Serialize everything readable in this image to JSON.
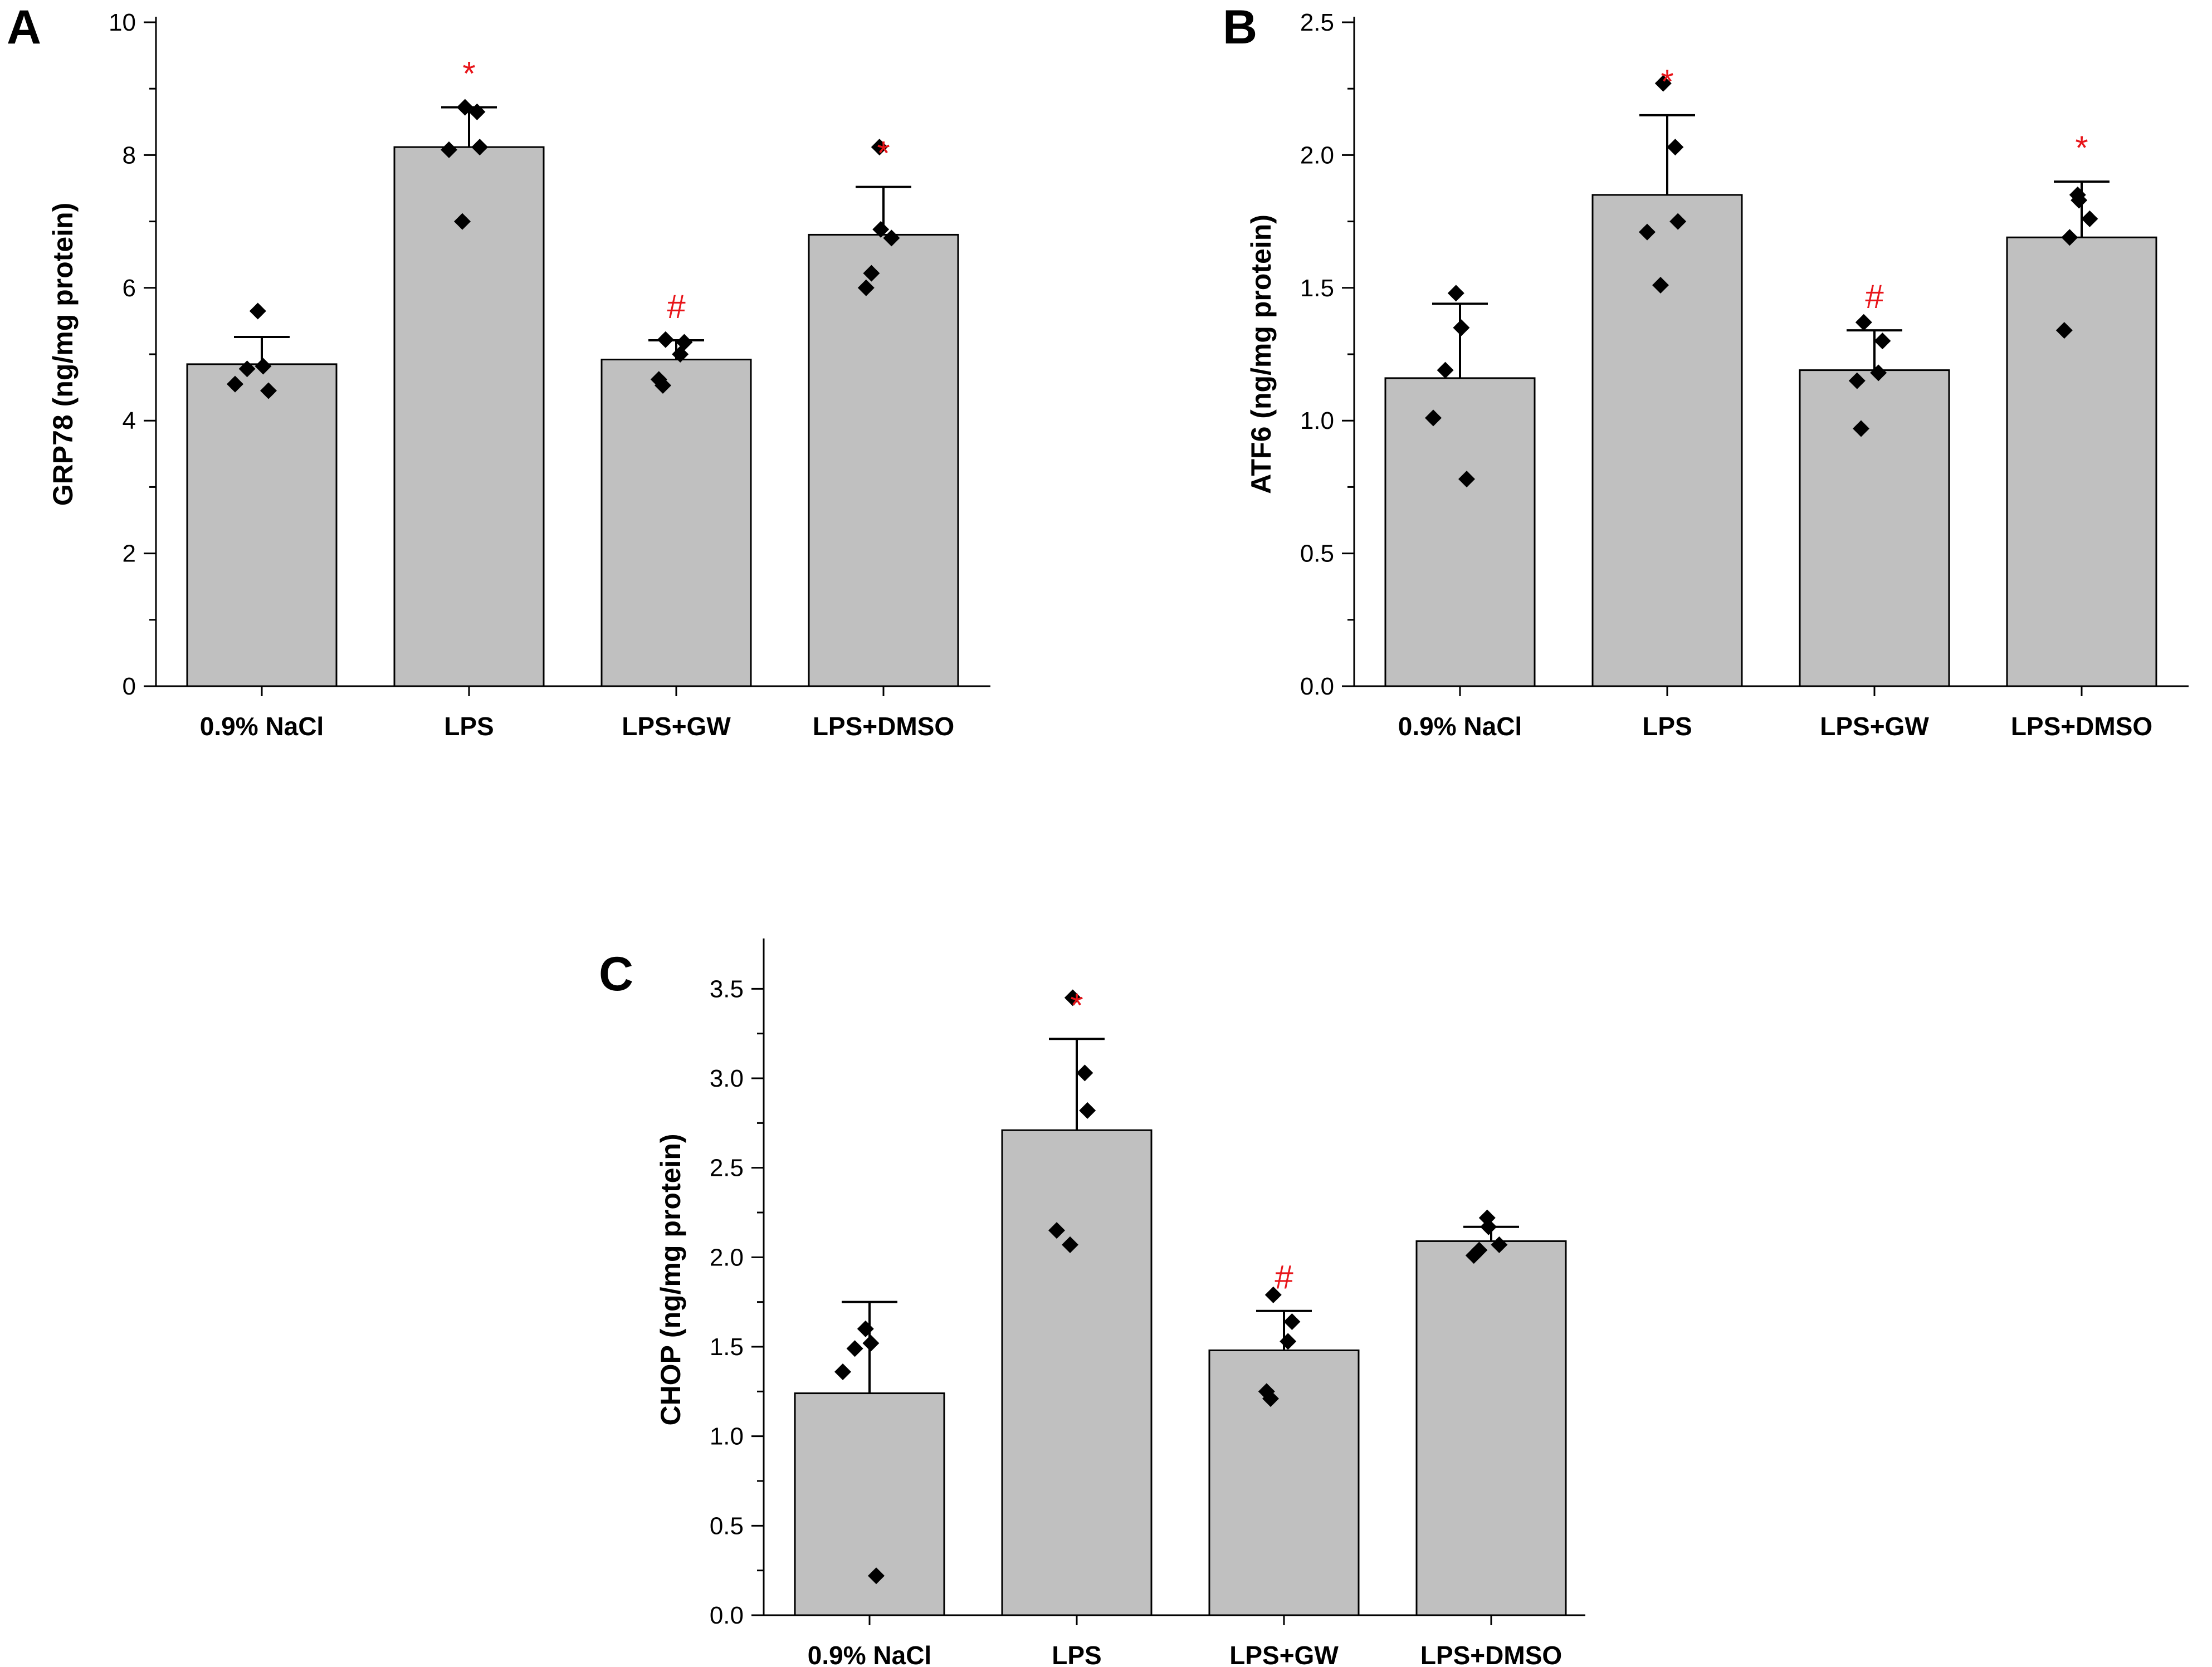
{
  "figure": {
    "background": "#ffffff",
    "bar_color": "#c0c0c0",
    "point_color": "#000000",
    "significance_color": "#e8151a"
  },
  "chart_data": [
    {
      "panel": "A",
      "type": "bar",
      "categories": [
        "0.9% NaCl",
        "LPS",
        "LPS+GW",
        "LPS+DMSO"
      ],
      "values": [
        4.85,
        8.12,
        4.92,
        6.8
      ],
      "error": [
        0.41,
        0.6,
        0.29,
        0.72
      ],
      "points": [
        [
          5.65,
          4.82,
          4.78,
          4.55,
          4.45
        ],
        [
          8.72,
          8.65,
          8.12,
          8.08,
          7.0
        ],
        [
          5.22,
          5.18,
          5.0,
          4.62,
          4.53
        ],
        [
          8.12,
          6.88,
          6.75,
          6.22,
          6.0
        ]
      ],
      "significance": [
        "",
        "*",
        "#",
        "*"
      ],
      "title": "",
      "xlabel": "",
      "ylabel": "GRP78 (ng/mg protein)",
      "ylim": [
        0,
        10
      ],
      "yticks": [
        0,
        2,
        4,
        6,
        8,
        10
      ],
      "ytick_labels": [
        "0",
        "2",
        "4",
        "6",
        "8",
        "10"
      ]
    },
    {
      "panel": "B",
      "type": "bar",
      "categories": [
        "0.9% NaCl",
        "LPS",
        "LPS+GW",
        "LPS+DMSO"
      ],
      "values": [
        1.16,
        1.85,
        1.19,
        1.69
      ],
      "error": [
        0.28,
        0.3,
        0.15,
        0.21
      ],
      "points": [
        [
          1.48,
          1.35,
          1.19,
          1.01,
          0.78
        ],
        [
          2.27,
          2.03,
          1.75,
          1.71,
          1.51
        ],
        [
          1.37,
          1.3,
          1.18,
          1.15,
          0.97
        ],
        [
          1.85,
          1.83,
          1.76,
          1.69,
          1.34
        ]
      ],
      "significance": [
        "",
        "*",
        "#",
        "*"
      ],
      "title": "",
      "xlabel": "",
      "ylabel": "ATF6 (ng/mg protein)",
      "ylim": [
        0,
        2.5
      ],
      "yticks": [
        0,
        0.5,
        1.0,
        1.5,
        2.0,
        2.5
      ],
      "ytick_labels": [
        "0.0",
        "0.5",
        "1.0",
        "1.5",
        "2.0",
        "2.5"
      ]
    },
    {
      "panel": "C",
      "type": "bar",
      "categories": [
        "0.9% NaCl",
        "LPS",
        "LPS+GW",
        "LPS+DMSO"
      ],
      "values": [
        1.24,
        2.71,
        1.48,
        2.09
      ],
      "error": [
        0.51,
        0.51,
        0.22,
        0.08
      ],
      "points": [
        [
          1.6,
          1.52,
          1.49,
          1.36,
          0.22
        ],
        [
          3.45,
          3.03,
          2.82,
          2.15,
          2.07
        ],
        [
          1.79,
          1.64,
          1.53,
          1.25,
          1.21
        ],
        [
          2.22,
          2.17,
          2.07,
          2.04,
          2.01
        ]
      ],
      "significance": [
        "",
        "*",
        "#",
        ""
      ],
      "title": "",
      "xlabel": "",
      "ylabel": "CHOP (ng/mg protein)",
      "ylim": [
        0,
        3.75
      ],
      "yticks": [
        0,
        0.5,
        1.0,
        1.5,
        2.0,
        2.5,
        3.0,
        3.5
      ],
      "ytick_labels": [
        "0.0",
        "0.5",
        "1.0",
        "1.5",
        "2.0",
        "2.5",
        "3.0",
        "3.5"
      ]
    }
  ]
}
